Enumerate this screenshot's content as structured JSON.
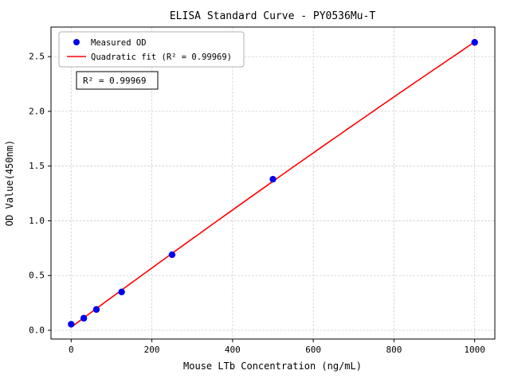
{
  "chart_data": {
    "type": "scatter",
    "title": "ELISA Standard Curve - PY0536Mu-T",
    "xlabel": "Mouse LTb Concentration (ng/mL)",
    "ylabel": "OD Value(450nm)",
    "xlim": [
      -50,
      1050
    ],
    "ylim": [
      -0.08,
      2.77
    ],
    "x_ticks": [
      0,
      200,
      400,
      600,
      800,
      1000
    ],
    "y_ticks": [
      0.0,
      0.5,
      1.0,
      1.5,
      2.0,
      2.5
    ],
    "grid": "dashed",
    "legend_position": "upper-left",
    "series": [
      {
        "name": "Measured OD",
        "type": "scatter",
        "color": "#0000ee",
        "x": [
          0,
          31.25,
          62.5,
          125,
          250,
          500,
          1000
        ],
        "y": [
          0.055,
          0.11,
          0.19,
          0.35,
          0.69,
          1.38,
          2.63
        ]
      },
      {
        "name": "Quadratic fit (R² = 0.99969)",
        "type": "line",
        "fit": "quadratic",
        "color": "#ff0000"
      }
    ],
    "annotation": "R² = 0.99969",
    "colors": {
      "points": "#0000ee",
      "fit_line": "#ff0000",
      "grid": "#cccccc"
    }
  }
}
